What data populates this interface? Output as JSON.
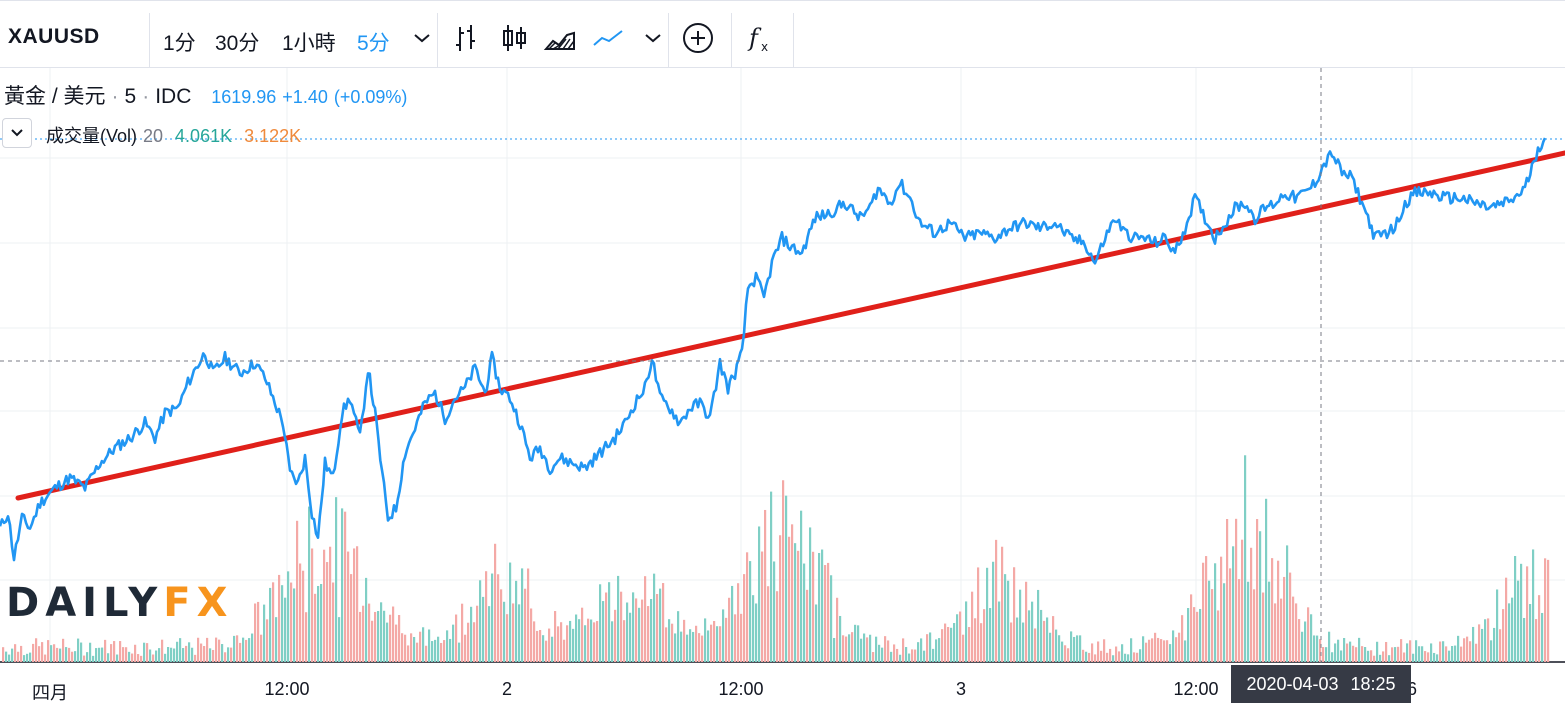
{
  "toolbar": {
    "symbol": "XAUUSD",
    "intervals": [
      {
        "label": "1分",
        "active": false
      },
      {
        "label": "30分",
        "active": false
      },
      {
        "label": "1小時",
        "active": false
      },
      {
        "label": "5分",
        "active": true
      }
    ],
    "icons": [
      "chevron-down-icon",
      "bar-chart-icon",
      "candlestick-chart-icon",
      "area-chart-icon",
      "line-chart-icon",
      "chevron-down-icon",
      "compare-add-icon",
      "indicators-icon"
    ]
  },
  "legend": {
    "name": "黃金 / 美元",
    "interval": "5",
    "exchange": "IDC",
    "last": "1619.96",
    "change": "+1.40",
    "change_pct": "(+0.09%)"
  },
  "volume_legend": {
    "name": "成交量(Vol)",
    "length": "20",
    "value_a": "4.061K",
    "value_b": "3.122K"
  },
  "time_axis": {
    "ticks": [
      "四月",
      "12:00",
      "2",
      "12:00",
      "3",
      "12:00",
      "6"
    ],
    "crosshair_date": "2020-04-03",
    "crosshair_time": "18:25"
  },
  "watermark": {
    "part_a": "DAILY",
    "part_b": "FX"
  },
  "colors": {
    "price_line": "#2196f3",
    "trend_line": "#e0201a",
    "vol_up": "#7fcfc5",
    "vol_down": "#f4a9a6",
    "grid": "#eef0f3"
  },
  "chart_data": {
    "type": "line",
    "title": "黃金 / 美元 · 5 · IDC",
    "x_ticks": [
      "四月",
      "12:00",
      "2",
      "12:00",
      "3",
      "12:00",
      "6"
    ],
    "price_path": [
      [
        0,
        1572
      ],
      [
        8,
        1575
      ],
      [
        14,
        1566
      ],
      [
        22,
        1574
      ],
      [
        30,
        1572
      ],
      [
        40,
        1577
      ],
      [
        55,
        1580
      ],
      [
        70,
        1582
      ],
      [
        85,
        1580
      ],
      [
        100,
        1585
      ],
      [
        115,
        1588
      ],
      [
        130,
        1590
      ],
      [
        145,
        1593
      ],
      [
        155,
        1590
      ],
      [
        165,
        1595
      ],
      [
        178,
        1596
      ],
      [
        188,
        1601
      ],
      [
        196,
        1604
      ],
      [
        205,
        1607
      ],
      [
        213,
        1603
      ],
      [
        225,
        1606
      ],
      [
        240,
        1603
      ],
      [
        255,
        1605
      ],
      [
        265,
        1602
      ],
      [
        275,
        1597
      ],
      [
        283,
        1593
      ],
      [
        290,
        1583
      ],
      [
        298,
        1581
      ],
      [
        305,
        1586
      ],
      [
        312,
        1575
      ],
      [
        318,
        1570
      ],
      [
        325,
        1585
      ],
      [
        333,
        1582
      ],
      [
        342,
        1595
      ],
      [
        350,
        1598
      ],
      [
        360,
        1590
      ],
      [
        368,
        1604
      ],
      [
        375,
        1595
      ],
      [
        382,
        1583
      ],
      [
        388,
        1574
      ],
      [
        396,
        1576
      ],
      [
        405,
        1587
      ],
      [
        415,
        1592
      ],
      [
        425,
        1597
      ],
      [
        435,
        1599
      ],
      [
        445,
        1594
      ],
      [
        455,
        1598
      ],
      [
        465,
        1600
      ],
      [
        475,
        1604
      ],
      [
        485,
        1599
      ],
      [
        492,
        1606
      ],
      [
        500,
        1600
      ],
      [
        510,
        1598
      ],
      [
        520,
        1593
      ],
      [
        530,
        1586
      ],
      [
        540,
        1588
      ],
      [
        550,
        1584
      ],
      [
        560,
        1586
      ],
      [
        572,
        1585
      ],
      [
        585,
        1584
      ],
      [
        600,
        1587
      ],
      [
        615,
        1590
      ],
      [
        625,
        1593
      ],
      [
        635,
        1597
      ],
      [
        645,
        1600
      ],
      [
        652,
        1606
      ],
      [
        660,
        1598
      ],
      [
        670,
        1596
      ],
      [
        680,
        1593
      ],
      [
        690,
        1596
      ],
      [
        700,
        1597
      ],
      [
        710,
        1594
      ],
      [
        720,
        1605
      ],
      [
        728,
        1600
      ],
      [
        735,
        1603
      ],
      [
        742,
        1607
      ],
      [
        748,
        1620
      ],
      [
        756,
        1622
      ],
      [
        764,
        1618
      ],
      [
        772,
        1625
      ],
      [
        782,
        1630
      ],
      [
        792,
        1628
      ],
      [
        802,
        1627
      ],
      [
        815,
        1634
      ],
      [
        830,
        1635
      ],
      [
        845,
        1637
      ],
      [
        860,
        1634
      ],
      [
        870,
        1636
      ],
      [
        878,
        1640
      ],
      [
        890,
        1637
      ],
      [
        900,
        1641
      ],
      [
        910,
        1638
      ],
      [
        920,
        1633
      ],
      [
        935,
        1631
      ],
      [
        950,
        1633
      ],
      [
        965,
        1630
      ],
      [
        980,
        1631
      ],
      [
        995,
        1630
      ],
      [
        1010,
        1632
      ],
      [
        1025,
        1633
      ],
      [
        1040,
        1632
      ],
      [
        1055,
        1633
      ],
      [
        1070,
        1630
      ],
      [
        1085,
        1629
      ],
      [
        1095,
        1625
      ],
      [
        1105,
        1630
      ],
      [
        1115,
        1634
      ],
      [
        1125,
        1631
      ],
      [
        1135,
        1630
      ],
      [
        1145,
        1630
      ],
      [
        1155,
        1629
      ],
      [
        1165,
        1630
      ],
      [
        1175,
        1627
      ],
      [
        1185,
        1632
      ],
      [
        1195,
        1638
      ],
      [
        1205,
        1634
      ],
      [
        1215,
        1630
      ],
      [
        1225,
        1633
      ],
      [
        1235,
        1636
      ],
      [
        1245,
        1637
      ],
      [
        1255,
        1634
      ],
      [
        1265,
        1636
      ],
      [
        1275,
        1637
      ],
      [
        1285,
        1639
      ],
      [
        1295,
        1638
      ],
      [
        1305,
        1639
      ],
      [
        1315,
        1641
      ],
      [
        1322,
        1644
      ],
      [
        1332,
        1647
      ],
      [
        1342,
        1643
      ],
      [
        1352,
        1642
      ],
      [
        1360,
        1638
      ],
      [
        1368,
        1634
      ],
      [
        1375,
        1630
      ],
      [
        1385,
        1631
      ],
      [
        1395,
        1632
      ],
      [
        1405,
        1637
      ],
      [
        1415,
        1639
      ],
      [
        1430,
        1639
      ],
      [
        1445,
        1638
      ],
      [
        1460,
        1638
      ],
      [
        1475,
        1637
      ],
      [
        1490,
        1636
      ],
      [
        1505,
        1637
      ],
      [
        1515,
        1638
      ],
      [
        1525,
        1640
      ],
      [
        1532,
        1644
      ],
      [
        1538,
        1648
      ],
      [
        1545,
        1650
      ]
    ],
    "trend_line": [
      [
        18,
        1578
      ],
      [
        1565,
        1647
      ]
    ],
    "price_range": [
      1560,
      1660
    ]
  }
}
